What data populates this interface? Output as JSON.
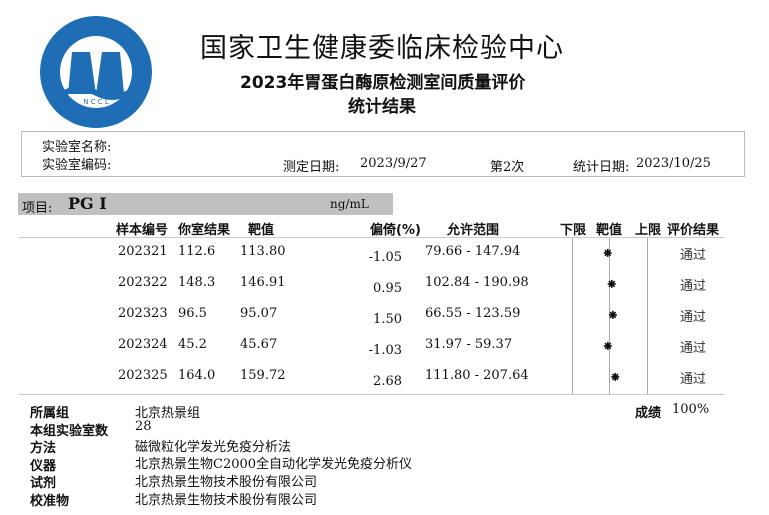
{
  "header": {
    "org": "国家卫生健康委临床检验中心",
    "subtitle": "2023年胃蛋白酶原检测室间质量评价",
    "subtitle2": "统计结果",
    "logo_text": "国家卫生健康委临床检验中心 National Center for Clinical Laboratories NCCL",
    "logo_color": "#1f6db5"
  },
  "info": {
    "lab_name_label": "实验室名称:",
    "lab_code_label": "实验室编码:",
    "test_date_label": "测定日期:",
    "test_date": "2023/9/27",
    "round": "第2次",
    "stat_date_label": "统计日期:",
    "stat_date": "2023/10/25"
  },
  "project": {
    "label": "项目:",
    "name": "PG I",
    "unit": "ng/mL"
  },
  "columns": [
    "样本编号",
    "你室结果",
    "靶值",
    "偏倚(%)",
    "允许范围",
    "下限",
    "靶值",
    "上限",
    "评价结果"
  ],
  "rows": [
    {
      "id": "202321",
      "result": "112.6",
      "target": "113.80",
      "bias": "-1.05",
      "range": "79.66 - 147.94",
      "eval": "通过"
    },
    {
      "id": "202322",
      "result": "148.3",
      "target": "146.91",
      "bias": "0.95",
      "range": "102.84 - 190.98",
      "eval": "通过"
    },
    {
      "id": "202323",
      "result": "96.5",
      "target": "95.07",
      "bias": "1.50",
      "range": "66.55 - 123.59",
      "eval": "通过"
    },
    {
      "id": "202324",
      "result": "45.2",
      "target": "45.67",
      "bias": "-1.03",
      "range": "31.97 - 59.37",
      "eval": "通过"
    },
    {
      "id": "202325",
      "result": "164.0",
      "target": "159.72",
      "bias": "2.68",
      "range": "111.80 - 207.64",
      "eval": "通过"
    }
  ],
  "marker_glyph": "⁕",
  "summary": {
    "group_label": "所属组",
    "group": "北京热景组",
    "count_label": "本组实验室数",
    "count": "28",
    "method_label": "方法",
    "method": "磁微粒化学发光免疫分析法",
    "instrument_label": "仪器",
    "instrument": "北京热景生物C2000全自动化学发光免疫分析仪",
    "reagent_label": "试剂",
    "reagent": "北京热景生物技术股份有限公司",
    "calibrator_label": "校准物",
    "calibrator": "北京热景生物技术股份有限公司",
    "score_label": "成绩",
    "score": "100%"
  }
}
